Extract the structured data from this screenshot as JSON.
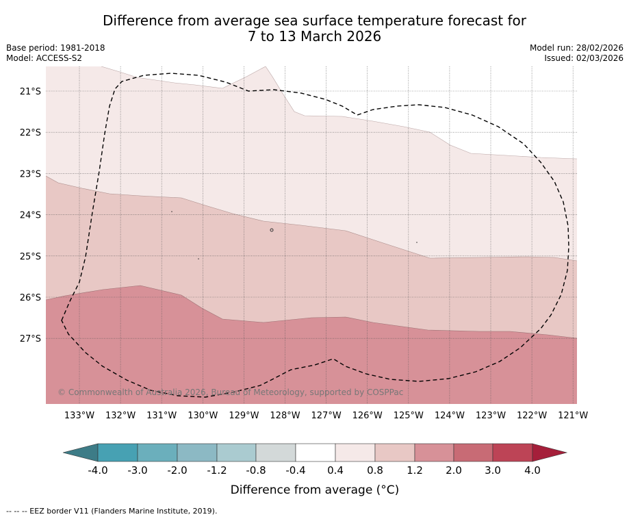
{
  "header": {
    "title_line1": "Difference from average sea surface temperature forecast for",
    "title_line2": "7 to 13 March 2026",
    "base_period": "Base period: 1981-2018",
    "model": "Model: ACCESS-S2",
    "model_run": "Model run: 28/02/2026",
    "issued": "Issued: 02/03/2026"
  },
  "map": {
    "lat_labels": [
      "21°S",
      "22°S",
      "23°S",
      "24°S",
      "25°S",
      "26°S",
      "27°S"
    ],
    "lon_labels": [
      "133°W",
      "132°W",
      "131°W",
      "130°W",
      "129°W",
      "128°W",
      "127°W",
      "126°W",
      "125°W",
      "124°W",
      "123°W",
      "122°W",
      "121°W"
    ],
    "copyright": "© Commonwealth of Australia 2026, Bureau of Meteorology, supported by COSPPac",
    "fill_colors": {
      "band_0_4_0_8": "#f5e9e8",
      "band_0_8_1_2": "#e8c8c5",
      "band_1_2_2_0": "#d79198",
      "eez_line": "#000000",
      "grid_line": "#555555"
    }
  },
  "legend": {
    "title": "Difference from average (°C)",
    "tick_labels": [
      "-4.0",
      "-3.0",
      "-2.0",
      "-1.2",
      "-0.8",
      "-0.4",
      "0.4",
      "0.8",
      "1.2",
      "2.0",
      "3.0",
      "4.0"
    ],
    "colors": [
      "#3d7c87",
      "#47a1b3",
      "#6bafbc",
      "#8cb9c4",
      "#aacbd0",
      "#d3d9d9",
      "#ffffff",
      "#f5e9e8",
      "#e8c8c5",
      "#d79198",
      "#c86b75",
      "#bd4456",
      "#a51f3a"
    ]
  },
  "footer": {
    "note": "--  --  -- EEZ border V11 (Flanders Marine Institute, 2019)."
  }
}
